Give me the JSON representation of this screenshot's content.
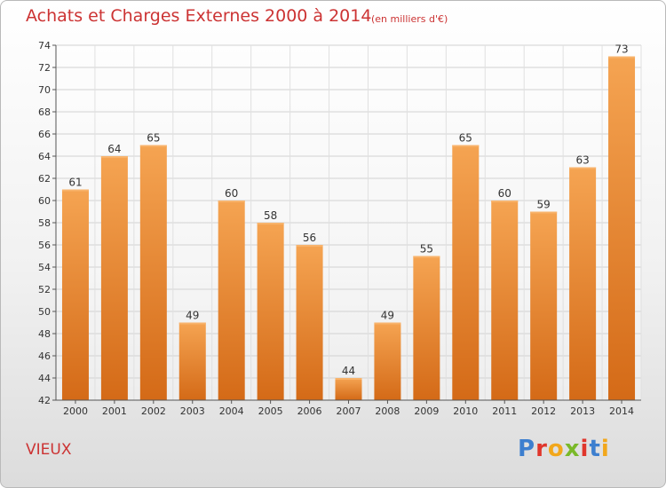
{
  "header": {
    "title": "Achats et Charges Externes 2000 à 2014",
    "subtitle": "(en milliers d'€)"
  },
  "footer": {
    "commune": "VIEUX",
    "brand_letters": [
      "P",
      "r",
      "o",
      "x",
      "i",
      "t",
      "i"
    ],
    "brand_colors": [
      "#3d7fcf",
      "#e0362c",
      "#f2a71b",
      "#7ab929",
      "#e0362c",
      "#3d7fcf",
      "#f2a71b"
    ]
  },
  "colors": {
    "bar_top": "#f5a452",
    "bar_bottom": "#d46a17",
    "text_title": "#cc3333",
    "axis_text": "#333333"
  },
  "chart_data": {
    "type": "bar",
    "categories": [
      "2000",
      "2001",
      "2002",
      "2003",
      "2004",
      "2005",
      "2006",
      "2007",
      "2008",
      "2009",
      "2010",
      "2011",
      "2012",
      "2013",
      "2014"
    ],
    "values": [
      61,
      64,
      65,
      49,
      60,
      58,
      56,
      44,
      49,
      55,
      65,
      60,
      59,
      63,
      73
    ],
    "ylim": [
      42,
      74
    ],
    "yticks": [
      42,
      44,
      46,
      48,
      50,
      52,
      54,
      56,
      58,
      60,
      62,
      64,
      66,
      68,
      70,
      72,
      74
    ],
    "grid": true,
    "data_labels": true
  }
}
